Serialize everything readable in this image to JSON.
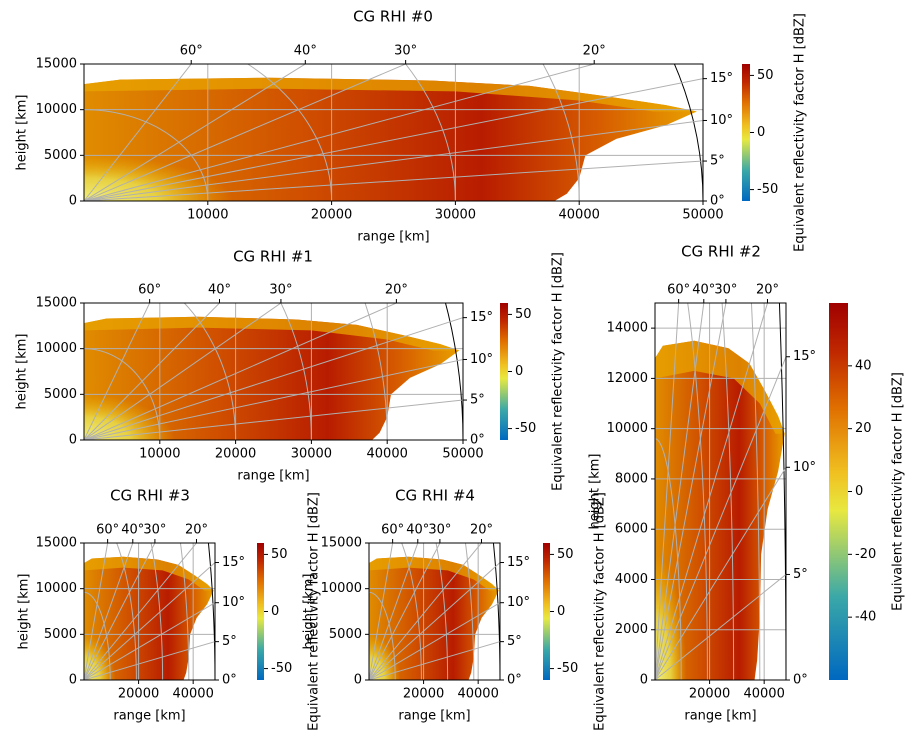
{
  "chart_data": [
    {
      "type": "rhi",
      "title": "CG RHI #0",
      "xlabel": "range [km]",
      "ylabel": "height [km]",
      "xlim": [
        0,
        50000
      ],
      "xticks": [
        10000,
        20000,
        30000,
        40000,
        50000
      ],
      "ylim": [
        0,
        15000
      ],
      "yticks": [
        0,
        5000,
        10000,
        15000
      ],
      "grid": true,
      "elevation_ticks": [
        {
          "value": 0,
          "label": "0°"
        },
        {
          "value": 5,
          "label": "5°"
        },
        {
          "value": 10,
          "label": "10°"
        },
        {
          "value": 15,
          "label": "15°"
        }
      ],
      "angle_ticks": [
        {
          "value": 60,
          "label": "60°"
        },
        {
          "value": 40,
          "label": "40°"
        },
        {
          "value": 30,
          "label": "30°"
        },
        {
          "value": 20,
          "label": "20°"
        }
      ],
      "colorbar": {
        "label": "Equivalent reflectivity factor H [dBZ]",
        "lim": [
          -60,
          60
        ],
        "ticks": [
          -50,
          0,
          50
        ]
      }
    },
    {
      "type": "rhi",
      "title": "CG RHI #1",
      "xlabel": "range [km]",
      "ylabel": "height [km]",
      "xlim": [
        0,
        50000
      ],
      "xticks": [
        10000,
        20000,
        30000,
        40000,
        50000
      ],
      "ylim": [
        0,
        15000
      ],
      "yticks": [
        0,
        5000,
        10000,
        15000
      ],
      "grid": true,
      "elevation_ticks": [
        {
          "value": 0,
          "label": "0°"
        },
        {
          "value": 5,
          "label": "5°"
        },
        {
          "value": 10,
          "label": "10°"
        },
        {
          "value": 15,
          "label": "15°"
        }
      ],
      "angle_ticks": [
        {
          "value": 60,
          "label": "60°"
        },
        {
          "value": 40,
          "label": "40°"
        },
        {
          "value": 30,
          "label": "30°"
        },
        {
          "value": 20,
          "label": "20°"
        }
      ],
      "colorbar": {
        "label": "Equivalent reflectivity factor H [dBZ]",
        "lim": [
          -60,
          60
        ],
        "ticks": [
          -50,
          0,
          50
        ]
      }
    },
    {
      "type": "rhi",
      "title": "CG RHI #2",
      "xlabel": "range [km]",
      "ylabel": "height [km]",
      "xlim": [
        0,
        48000
      ],
      "xticks": [
        20000,
        40000
      ],
      "ylim": [
        0,
        15000
      ],
      "yticks": [
        0,
        2000,
        4000,
        6000,
        8000,
        10000,
        12000,
        14000
      ],
      "grid": true,
      "elevation_ticks": [
        {
          "value": 0,
          "label": "0°"
        },
        {
          "value": 5,
          "label": "5°"
        },
        {
          "value": 10,
          "label": "10°"
        },
        {
          "value": 15,
          "label": "15°"
        }
      ],
      "angle_ticks": [
        {
          "value": 60,
          "label": "60°"
        },
        {
          "value": 40,
          "label": "40°"
        },
        {
          "value": 30,
          "label": "30°"
        },
        {
          "value": 20,
          "label": "20°"
        }
      ],
      "colorbar": {
        "label": "Equivalent reflectivity factor H [dBZ]",
        "lim": [
          -60,
          60
        ],
        "ticks": [
          -40,
          -20,
          0,
          20,
          40
        ]
      }
    },
    {
      "type": "rhi",
      "title": "CG RHI #3",
      "xlabel": "range [km]",
      "ylabel": "height [km]",
      "xlim": [
        0,
        48000
      ],
      "xticks": [
        20000,
        40000
      ],
      "ylim": [
        0,
        15000
      ],
      "yticks": [
        0,
        5000,
        10000,
        15000
      ],
      "grid": true,
      "elevation_ticks": [
        {
          "value": 0,
          "label": "0°"
        },
        {
          "value": 5,
          "label": "5°"
        },
        {
          "value": 10,
          "label": "10°"
        },
        {
          "value": 15,
          "label": "15°"
        }
      ],
      "angle_ticks": [
        {
          "value": 60,
          "label": "60°"
        },
        {
          "value": 40,
          "label": "40°"
        },
        {
          "value": 30,
          "label": "30°"
        },
        {
          "value": 20,
          "label": "20°"
        }
      ],
      "colorbar": {
        "label": "Equivalent reflectivity factor H [dBZ]",
        "lim": [
          -60,
          60
        ],
        "ticks": [
          -50,
          0,
          50
        ]
      }
    },
    {
      "type": "rhi",
      "title": "CG RHI #4",
      "xlabel": "range [km]",
      "ylabel": "height [km]",
      "xlim": [
        0,
        48000
      ],
      "xticks": [
        20000,
        40000
      ],
      "ylim": [
        0,
        15000
      ],
      "yticks": [
        0,
        5000,
        10000,
        15000
      ],
      "grid": true,
      "elevation_ticks": [
        {
          "value": 0,
          "label": "0°"
        },
        {
          "value": 5,
          "label": "5°"
        },
        {
          "value": 10,
          "label": "10°"
        },
        {
          "value": 15,
          "label": "15°"
        }
      ],
      "angle_ticks": [
        {
          "value": 60,
          "label": "60°"
        },
        {
          "value": 40,
          "label": "40°"
        },
        {
          "value": 30,
          "label": "30°"
        },
        {
          "value": 20,
          "label": "20°"
        }
      ],
      "colorbar": {
        "label": "Equivalent reflectivity factor H [dBZ]",
        "lim": [
          -60,
          60
        ],
        "ticks": [
          -50,
          0,
          50
        ]
      }
    }
  ]
}
